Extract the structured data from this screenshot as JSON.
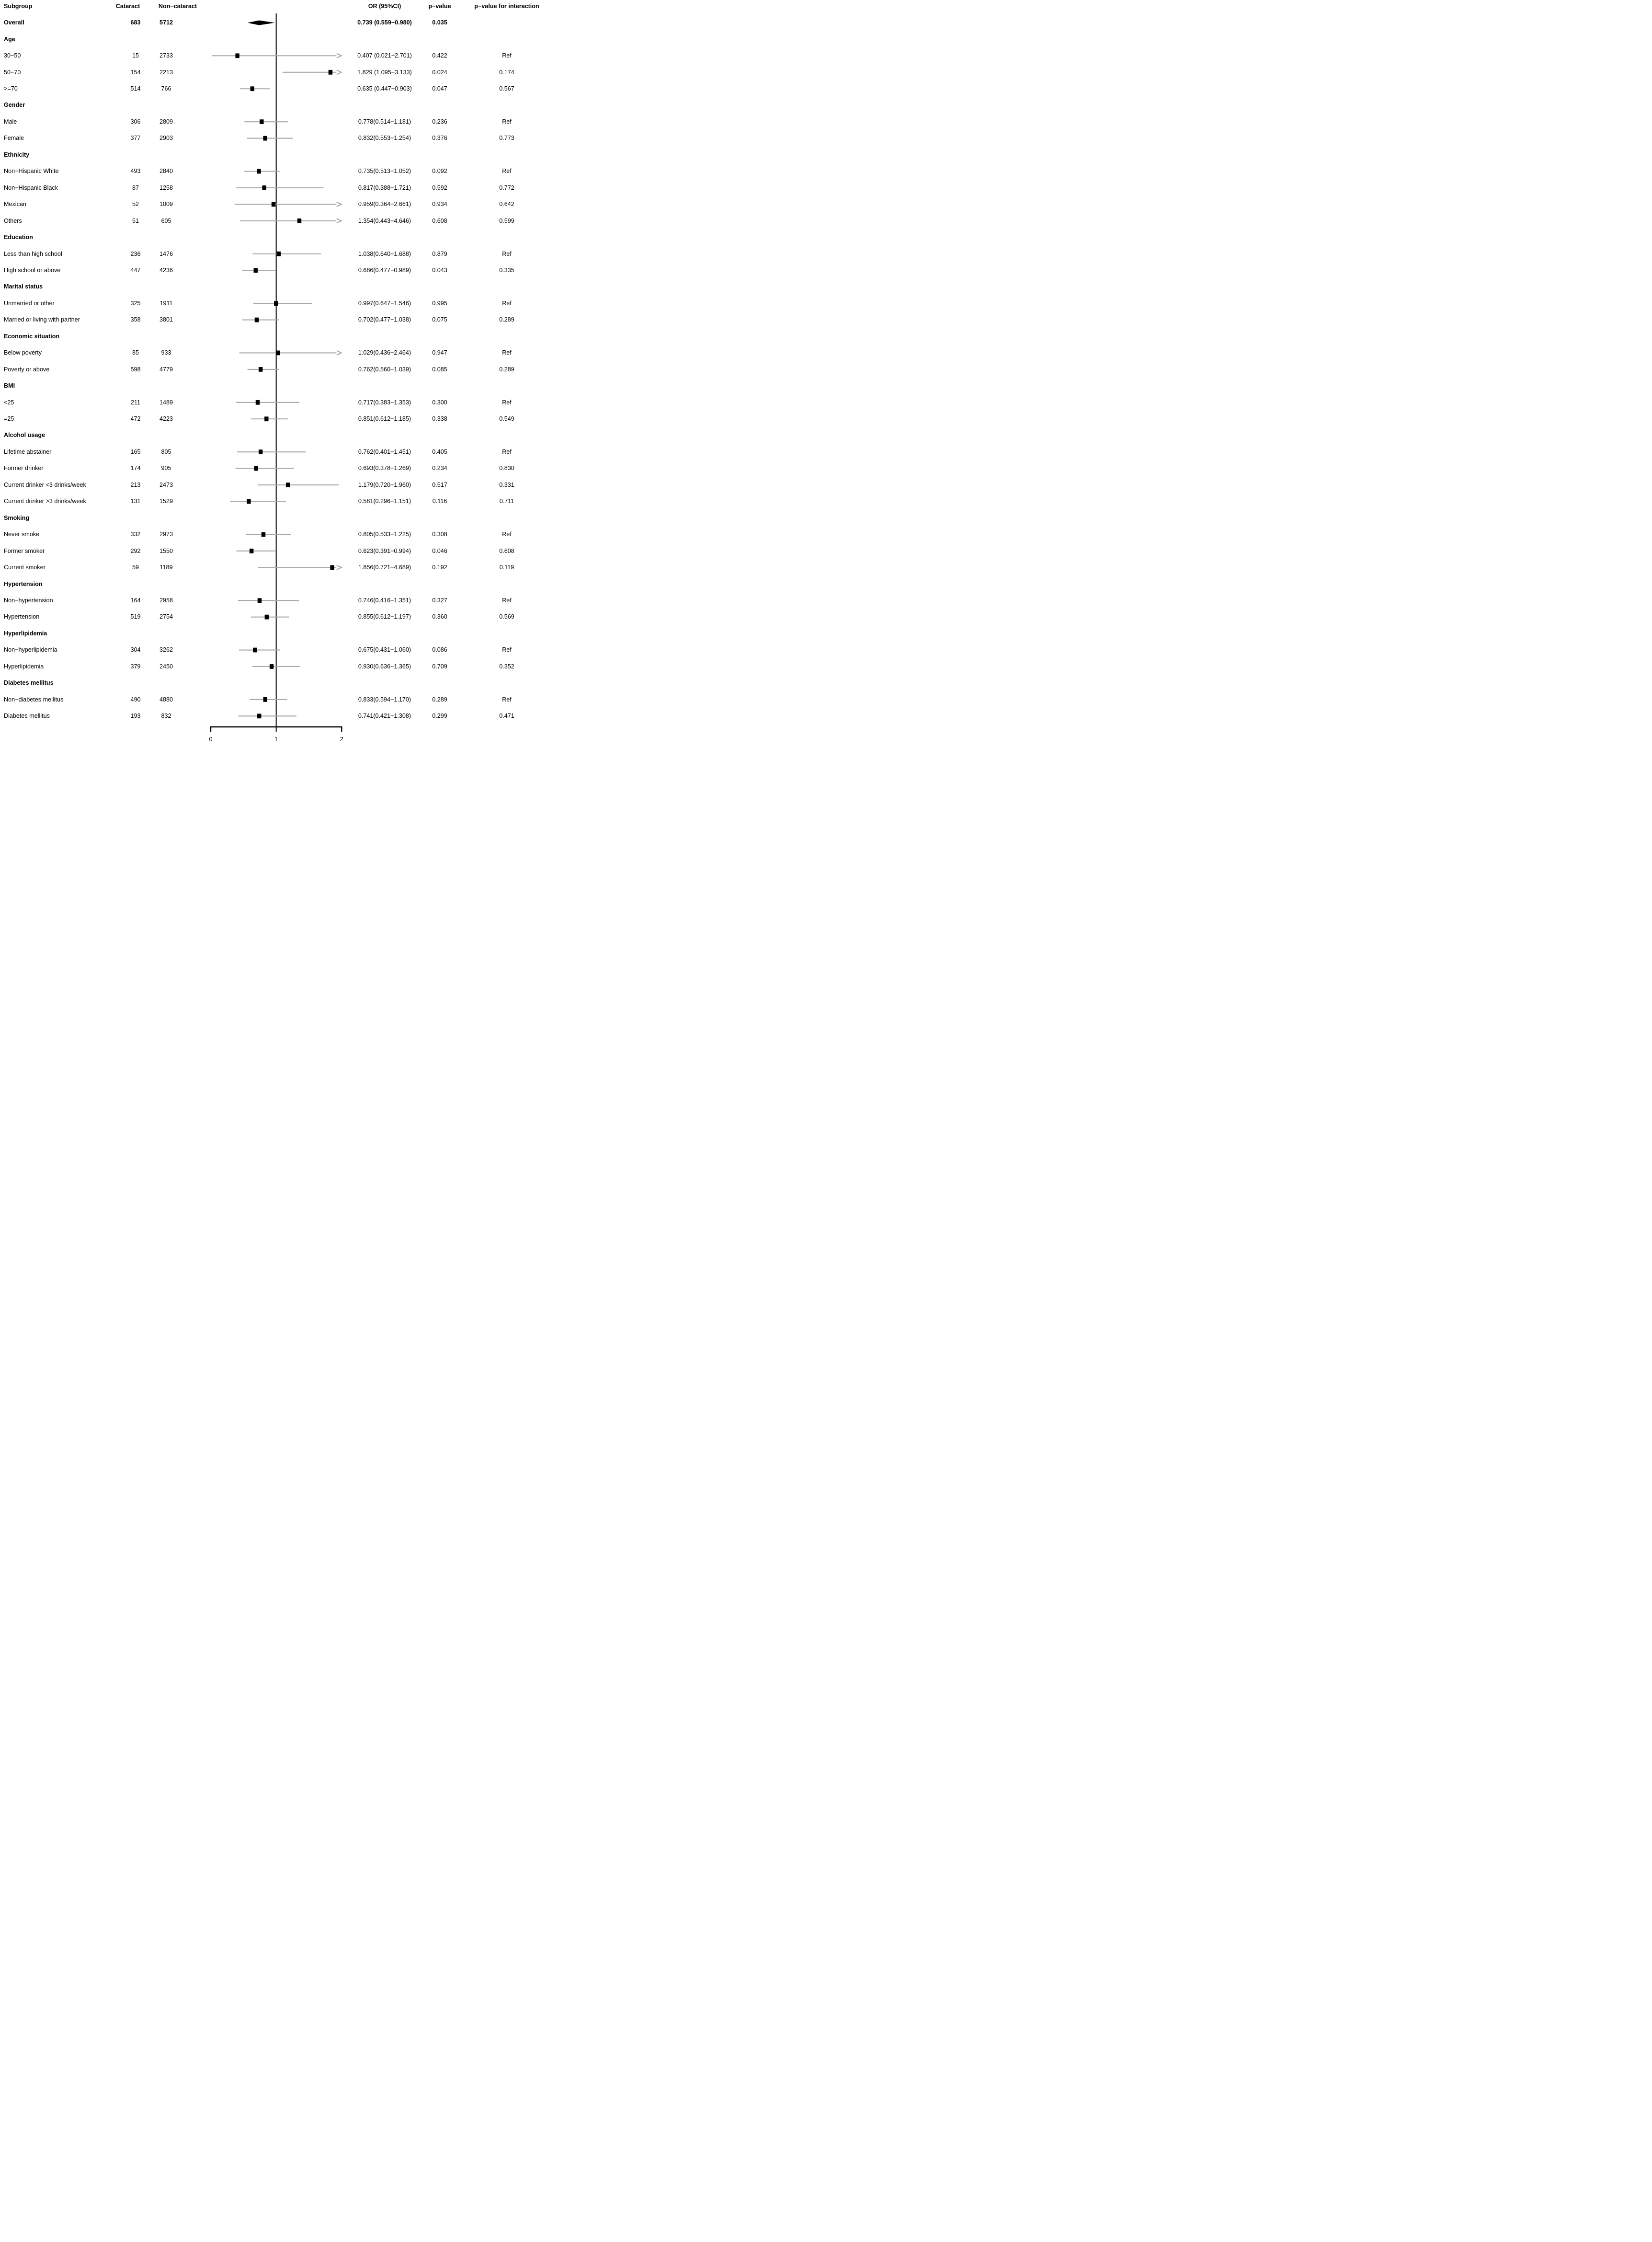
{
  "chart_data": {
    "type": "scatter",
    "subtype": "forest_plot_subgroup_odds_ratios",
    "title": "",
    "xlabel": "",
    "ylabel": "",
    "legend": null,
    "grid": false,
    "x_axis": {
      "min": 0,
      "max": 2,
      "ticks": [
        "0",
        "1",
        "2"
      ],
      "reference_line": 1
    },
    "columns": {
      "subgroup": "Subgroup",
      "cataract": "Cataract",
      "non_cataract": "Non−cataract",
      "or_ci": "OR (95%CI)",
      "p_value": "p−value",
      "p_interaction": "p−value for interaction"
    },
    "rows": [
      {
        "kind": "overall",
        "label": "Overall",
        "cataract": "683",
        "non_cataract": "5712",
        "or_ci": "0.739 (0.559−0.980)",
        "p": "0.035",
        "p_interaction": "",
        "est": 0.739,
        "low": 0.559,
        "high": 0.98,
        "marker": "diamond"
      },
      {
        "kind": "group",
        "label": "Age"
      },
      {
        "kind": "item",
        "label": "30−50",
        "cataract": "15",
        "non_cataract": "2733",
        "or_ci": "0.407 (0.021−2.701)",
        "p": "0.422",
        "p_interaction": "Ref",
        "est": 0.407,
        "low": 0.021,
        "high": 2.701,
        "marker": "square"
      },
      {
        "kind": "item",
        "label": "50−70",
        "cataract": "154",
        "non_cataract": "2213",
        "or_ci": "1.829 (1.095−3.133)",
        "p": "0.024",
        "p_interaction": "0.174",
        "est": 1.829,
        "low": 1.095,
        "high": 3.133,
        "marker": "square"
      },
      {
        "kind": "item",
        "label": ">=70",
        "cataract": "514",
        "non_cataract": "766",
        "or_ci": "0.635 (0.447−0.903)",
        "p": "0.047",
        "p_interaction": "0.567",
        "est": 0.635,
        "low": 0.447,
        "high": 0.903,
        "marker": "square"
      },
      {
        "kind": "group",
        "label": "Gender"
      },
      {
        "kind": "item",
        "label": "Male",
        "cataract": "306",
        "non_cataract": "2809",
        "or_ci": "0.778(0.514−1.181)",
        "p": "0.236",
        "p_interaction": "Ref",
        "est": 0.778,
        "low": 0.514,
        "high": 1.181,
        "marker": "square"
      },
      {
        "kind": "item",
        "label": "Female",
        "cataract": "377",
        "non_cataract": "2903",
        "or_ci": "0.832(0.553−1.254)",
        "p": "0.376",
        "p_interaction": "0.773",
        "est": 0.832,
        "low": 0.553,
        "high": 1.254,
        "marker": "square"
      },
      {
        "kind": "group",
        "label": "Ethnicity"
      },
      {
        "kind": "item",
        "label": "Non−Hispanic White",
        "cataract": "493",
        "non_cataract": "2840",
        "or_ci": "0.735(0.513−1.052)",
        "p": "0.092",
        "p_interaction": "Ref",
        "est": 0.735,
        "low": 0.513,
        "high": 1.052,
        "marker": "square"
      },
      {
        "kind": "item",
        "label": "Non−Hispanic Black",
        "cataract": "87",
        "non_cataract": "1258",
        "or_ci": "0.817(0.388−1.721)",
        "p": "0.592",
        "p_interaction": "0.772",
        "est": 0.817,
        "low": 0.388,
        "high": 1.721,
        "marker": "square"
      },
      {
        "kind": "item",
        "label": "Mexican",
        "cataract": "52",
        "non_cataract": "1009",
        "or_ci": "0.959(0.364−2.661)",
        "p": "0.934",
        "p_interaction": "0.642",
        "est": 0.959,
        "low": 0.364,
        "high": 2.661,
        "marker": "square"
      },
      {
        "kind": "item",
        "label": "Others",
        "cataract": "51",
        "non_cataract": "605",
        "or_ci": "1.354(0.443−4.646)",
        "p": "0.608",
        "p_interaction": "0.599",
        "est": 1.354,
        "low": 0.443,
        "high": 4.646,
        "marker": "square"
      },
      {
        "kind": "group",
        "label": "Education"
      },
      {
        "kind": "item",
        "label": "Less than high school",
        "cataract": "236",
        "non_cataract": "1476",
        "or_ci": "1.038(0.640−1.688)",
        "p": "0.879",
        "p_interaction": "Ref",
        "est": 1.038,
        "low": 0.64,
        "high": 1.688,
        "marker": "square"
      },
      {
        "kind": "item",
        "label": "High school or above",
        "cataract": "447",
        "non_cataract": "4236",
        "or_ci": "0.686(0.477−0.989)",
        "p": "0.043",
        "p_interaction": "0.335",
        "est": 0.686,
        "low": 0.477,
        "high": 0.989,
        "marker": "square"
      },
      {
        "kind": "group",
        "label": "Marital status"
      },
      {
        "kind": "item",
        "label": "Unmarried or other",
        "cataract": "325",
        "non_cataract": "1911",
        "or_ci": "0.997(0.647−1.546)",
        "p": "0.995",
        "p_interaction": "Ref",
        "est": 0.997,
        "low": 0.647,
        "high": 1.546,
        "marker": "square"
      },
      {
        "kind": "item",
        "label": "Married or living with partner",
        "cataract": "358",
        "non_cataract": "3801",
        "or_ci": "0.702(0.477−1.038)",
        "p": "0.075",
        "p_interaction": "0.289",
        "est": 0.702,
        "low": 0.477,
        "high": 1.038,
        "marker": "square"
      },
      {
        "kind": "group",
        "label": "Economic situation"
      },
      {
        "kind": "item",
        "label": "Below poverty",
        "cataract": "85",
        "non_cataract": "933",
        "or_ci": "1.029(0.436−2.464)",
        "p": "0.947",
        "p_interaction": "Ref",
        "est": 1.029,
        "low": 0.436,
        "high": 2.464,
        "marker": "square"
      },
      {
        "kind": "item",
        "label": "Poverty or above",
        "cataract": "598",
        "non_cataract": "4779",
        "or_ci": "0.762(0.560−1.039)",
        "p": "0.085",
        "p_interaction": "0.289",
        "est": 0.762,
        "low": 0.56,
        "high": 1.039,
        "marker": "square"
      },
      {
        "kind": "group",
        "label": "BMI"
      },
      {
        "kind": "item",
        "label": "<25",
        "cataract": "211",
        "non_cataract": "1489",
        "or_ci": "0.717(0.383−1.353)",
        "p": "0.300",
        "p_interaction": "Ref",
        "est": 0.717,
        "low": 0.383,
        "high": 1.353,
        "marker": "square"
      },
      {
        "kind": "item",
        "label": "=25",
        "cataract": "472",
        "non_cataract": "4223",
        "or_ci": "0.851(0.612−1.185)",
        "p": "0.338",
        "p_interaction": "0.549",
        "est": 0.851,
        "low": 0.612,
        "high": 1.185,
        "marker": "square"
      },
      {
        "kind": "group",
        "label": "Alcohol usage"
      },
      {
        "kind": "item",
        "label": "Lifetime abstainer",
        "cataract": "165",
        "non_cataract": "805",
        "or_ci": "0.762(0.401−1.451)",
        "p": "0.405",
        "p_interaction": "Ref",
        "est": 0.762,
        "low": 0.401,
        "high": 1.451,
        "marker": "square"
      },
      {
        "kind": "item",
        "label": "Former drinker",
        "cataract": "174",
        "non_cataract": "905",
        "or_ci": "0.693(0.378−1.269)",
        "p": "0.234",
        "p_interaction": "0.830",
        "est": 0.693,
        "low": 0.378,
        "high": 1.269,
        "marker": "square"
      },
      {
        "kind": "item",
        "label": "Current drinker <3 drinks/week",
        "cataract": "213",
        "non_cataract": "2473",
        "or_ci": "1.179(0.720−1.960)",
        "p": "0.517",
        "p_interaction": "0.331",
        "est": 1.179,
        "low": 0.72,
        "high": 1.96,
        "marker": "square"
      },
      {
        "kind": "item",
        "label": "Current drinker >3 drinks/week",
        "cataract": "131",
        "non_cataract": "1529",
        "or_ci": "0.581(0.296−1.151)",
        "p": "0.116",
        "p_interaction": "0.711",
        "est": 0.581,
        "low": 0.296,
        "high": 1.151,
        "marker": "square"
      },
      {
        "kind": "group",
        "label": "Smoking"
      },
      {
        "kind": "item",
        "label": "Never smoke",
        "cataract": "332",
        "non_cataract": "2973",
        "or_ci": "0.805(0.533−1.225)",
        "p": "0.308",
        "p_interaction": "Ref",
        "est": 0.805,
        "low": 0.533,
        "high": 1.225,
        "marker": "square"
      },
      {
        "kind": "item",
        "label": "Former smoker",
        "cataract": "292",
        "non_cataract": "1550",
        "or_ci": "0.623(0.391−0.994)",
        "p": "0.046",
        "p_interaction": "0.608",
        "est": 0.623,
        "low": 0.391,
        "high": 0.994,
        "marker": "square"
      },
      {
        "kind": "item",
        "label": "Current smoker",
        "cataract": "59",
        "non_cataract": "1189",
        "or_ci": "1.856(0.721−4.689)",
        "p": "0.192",
        "p_interaction": "0.119",
        "est": 1.856,
        "low": 0.721,
        "high": 4.689,
        "marker": "square"
      },
      {
        "kind": "group",
        "label": "Hypertension"
      },
      {
        "kind": "item",
        "label": "Non−hypertension",
        "cataract": "164",
        "non_cataract": "2958",
        "or_ci": "0.746(0.416−1.351)",
        "p": "0.327",
        "p_interaction": "Ref",
        "est": 0.746,
        "low": 0.416,
        "high": 1.351,
        "marker": "square"
      },
      {
        "kind": "item",
        "label": "Hypertension",
        "cataract": "519",
        "non_cataract": "2754",
        "or_ci": "0.855(0.612−1.197)",
        "p": "0.360",
        "p_interaction": "0.569",
        "est": 0.855,
        "low": 0.612,
        "high": 1.197,
        "marker": "square"
      },
      {
        "kind": "group",
        "label": "Hyperlipidemia"
      },
      {
        "kind": "item",
        "label": "Non−hyperlipidemia",
        "cataract": "304",
        "non_cataract": "3262",
        "or_ci": "0.675(0.431−1.060)",
        "p": "0.086",
        "p_interaction": "Ref",
        "est": 0.675,
        "low": 0.431,
        "high": 1.06,
        "marker": "square"
      },
      {
        "kind": "item",
        "label": "Hyperlipidemia",
        "cataract": "379",
        "non_cataract": "2450",
        "or_ci": "0.930(0.636−1.365)",
        "p": "0.709",
        "p_interaction": "0.352",
        "est": 0.93,
        "low": 0.636,
        "high": 1.365,
        "marker": "square"
      },
      {
        "kind": "group",
        "label": "Diabetes mellitus"
      },
      {
        "kind": "item",
        "label": "Non−diabetes mellitus",
        "cataract": "490",
        "non_cataract": "4880",
        "or_ci": "0.833(0.594−1.170)",
        "p": "0.289",
        "p_interaction": "Ref",
        "est": 0.833,
        "low": 0.594,
        "high": 1.17,
        "marker": "square"
      },
      {
        "kind": "item",
        "label": "Diabetes mellitus",
        "cataract": "193",
        "non_cataract": "832",
        "or_ci": "0.741(0.421−1.308)",
        "p": "0.299",
        "p_interaction": "0.471",
        "est": 0.741,
        "low": 0.421,
        "high": 1.308,
        "marker": "square"
      }
    ]
  },
  "colors": {
    "background": "#ffffff",
    "text": "#000000",
    "ci_line": "#a9a9a9",
    "arrow": "#a9a9a9",
    "marker": "#000000",
    "reference_line": "#000000",
    "axis": "#000000"
  }
}
